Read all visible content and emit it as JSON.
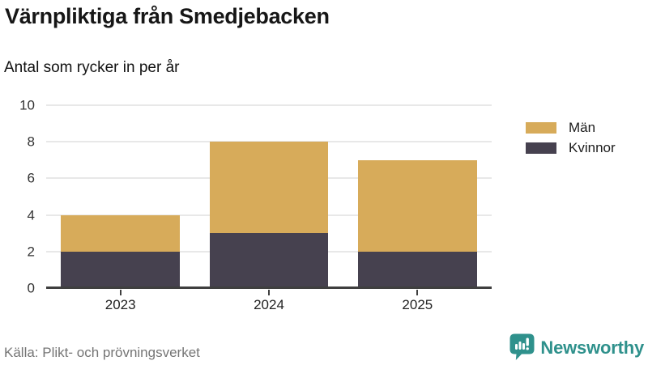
{
  "header": {
    "title": "Värnpliktiga från Smedjebacken",
    "subtitle": "Antal som rycker in per år"
  },
  "chart_data": {
    "type": "bar",
    "stacked": true,
    "title": "Värnpliktiga från Smedjebacken",
    "subtitle": "Antal som rycker in per år",
    "categories": [
      "2023",
      "2024",
      "2025"
    ],
    "series": [
      {
        "name": "Män",
        "color": "#d7ab5a",
        "values": [
          2,
          5,
          5
        ]
      },
      {
        "name": "Kvinnor",
        "color": "#46414f",
        "values": [
          2,
          3,
          2
        ]
      }
    ],
    "stack_totals": [
      4,
      8,
      7
    ],
    "xlabel": "",
    "ylabel": "",
    "ylim": [
      0,
      10
    ],
    "yticks": [
      0,
      2,
      4,
      6,
      8,
      10
    ],
    "grid": true,
    "legend_position": "right"
  },
  "footer": {
    "source": "Källa: Plikt- och prövningsverket",
    "brand": "Newsworthy",
    "brand_color": "#2f918c",
    "brand_icon": "bar-chart-speech-bubble"
  },
  "colors": {
    "axis": "#3f3f3f",
    "gridline": "#e8e8e8",
    "background": "#ffffff",
    "text": "#161616",
    "muted_text": "#757575"
  }
}
